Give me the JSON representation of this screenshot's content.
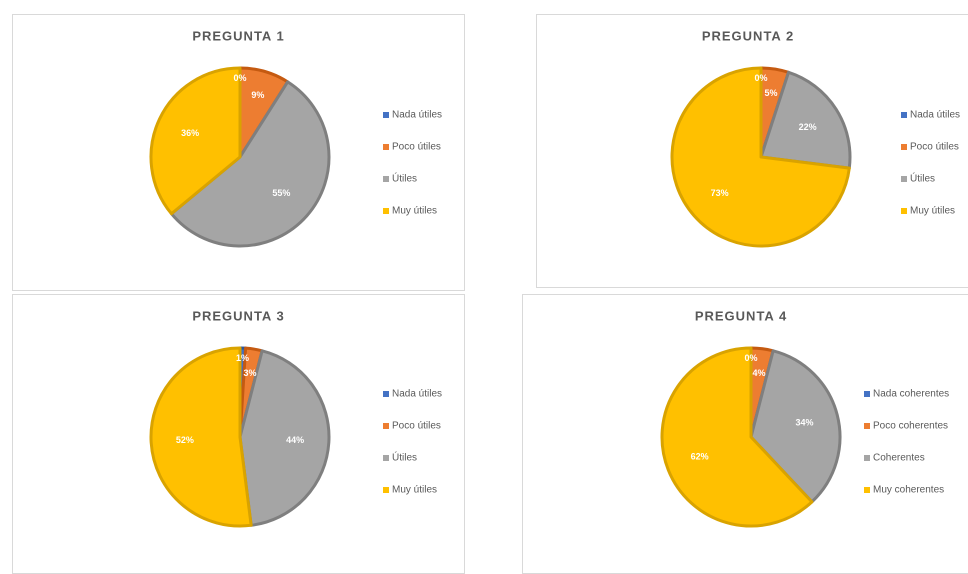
{
  "chart_data": [
    {
      "type": "pie",
      "title": "PREGUNTA 1",
      "categories": [
        "Nada útiles",
        "Poco útiles",
        "Útiles",
        "Muy útiles"
      ],
      "values": [
        0,
        9,
        55,
        36
      ],
      "value_labels": [
        "0%",
        "9%",
        "55%",
        "36%"
      ],
      "colors": [
        "#4472c4",
        "#ed7d31",
        "#a5a5a5",
        "#ffc000"
      ],
      "legend": "right"
    },
    {
      "type": "pie",
      "title": "PREGUNTA 2",
      "categories": [
        "Nada útiles",
        "Poco útiles",
        "Útiles",
        "Muy útiles"
      ],
      "values": [
        0,
        5,
        22,
        73
      ],
      "value_labels": [
        "0%",
        "5%",
        "22%",
        "73%"
      ],
      "colors": [
        "#4472c4",
        "#ed7d31",
        "#a5a5a5",
        "#ffc000"
      ],
      "legend": "right"
    },
    {
      "type": "pie",
      "title": "PREGUNTA 3",
      "categories": [
        "Nada útiles",
        "Poco útiles",
        "Útiles",
        "Muy útiles"
      ],
      "values": [
        1,
        3,
        44,
        52
      ],
      "value_labels": [
        "1%",
        "3%",
        "44%",
        "52%"
      ],
      "colors": [
        "#4472c4",
        "#ed7d31",
        "#a5a5a5",
        "#ffc000"
      ],
      "legend": "right"
    },
    {
      "type": "pie",
      "title": "PREGUNTA 4",
      "categories": [
        "Nada coherentes",
        "Poco coherentes",
        "Coherentes",
        "Muy coherentes"
      ],
      "values": [
        0,
        4,
        34,
        62
      ],
      "value_labels": [
        "0%",
        "4%",
        "34%",
        "62%"
      ],
      "colors": [
        "#4472c4",
        "#ed7d31",
        "#a5a5a5",
        "#ffc000"
      ],
      "legend": "right"
    }
  ]
}
